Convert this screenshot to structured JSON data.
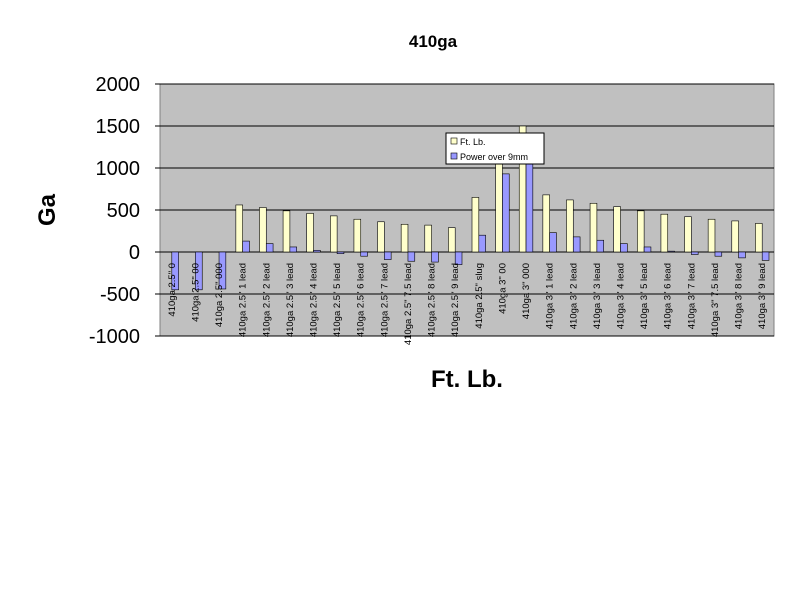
{
  "chart_data": {
    "type": "bar",
    "title": "410ga",
    "xlabel": "Ft. Lb.",
    "ylabel": "Ga",
    "ylim": [
      -1000,
      2000
    ],
    "yticks": [
      2000,
      1500,
      1000,
      500,
      0,
      -500,
      -1000
    ],
    "grid": true,
    "legend_position": "center",
    "categories": [
      "410ga 2.5\" 0",
      "410ga 2.5\" 00",
      "410ga 2.5\" 000",
      "410ga 2.5\" 1 lead",
      "410ga 2.5\" 2 lead",
      "410ga 2.5\" 3 lead",
      "410ga 2.5\" 4 lead",
      "410ga 2.5\" 5 lead",
      "410ga 2.5\" 6 lead",
      "410ga 2.5\" 7 lead",
      "410ga 2.5\" 7.5 lead",
      "410ga 2.5\" 8 lead",
      "410ga 2.5\" 9 lead",
      "410ga 2.5\" slug",
      "410ga 3\" 00",
      "410ga 3\" 000",
      "410ga 3\" 1 lead",
      "410ga 3\" 2 lead",
      "410ga 3\" 3 lead",
      "410ga 3\" 4 lead",
      "410ga 3\" 5 lead",
      "410ga 3\" 6 lead",
      "410ga 3\" 7 lead",
      "410ga 3\" 7.5 lead",
      "410ga 3\" 8 lead",
      "410ga 3\" 9 lead"
    ],
    "series": [
      {
        "name": "Ft. Lb.",
        "color": "#ffffcc",
        "values": [
          0,
          0,
          0,
          560,
          530,
          490,
          460,
          430,
          390,
          360,
          330,
          320,
          290,
          650,
          1050,
          1500,
          680,
          620,
          580,
          540,
          490,
          450,
          420,
          390,
          370,
          340
        ]
      },
      {
        "name": "Power over 9mm",
        "color": "#9999ff",
        "values": [
          -450,
          -450,
          -440,
          130,
          100,
          60,
          20,
          -20,
          -50,
          -90,
          -110,
          -120,
          -150,
          200,
          930,
          1050,
          230,
          180,
          140,
          100,
          60,
          10,
          -30,
          -50,
          -70,
          -100
        ]
      }
    ]
  },
  "colors": {
    "plot_background": "#c0c0c0",
    "gridline": "#000000",
    "axis": "#808080"
  }
}
